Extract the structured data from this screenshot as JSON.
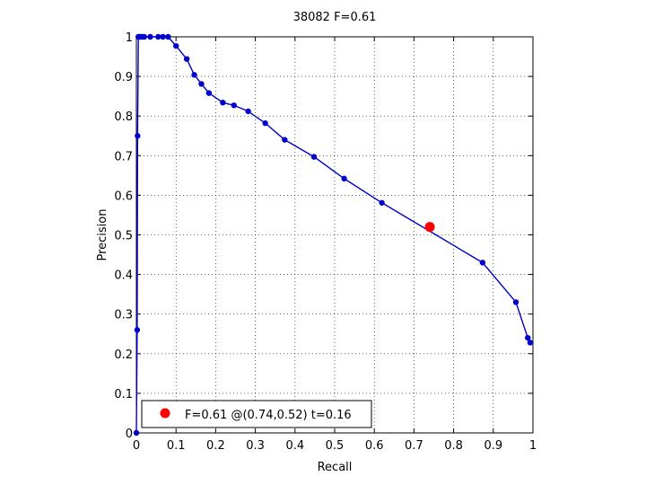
{
  "chart_data": {
    "type": "line",
    "title": "38082 F=0.61",
    "xlabel": "Recall",
    "ylabel": "Precision",
    "xlim": [
      0,
      1
    ],
    "ylim": [
      0,
      1
    ],
    "xticks": [
      0,
      0.1,
      0.2,
      0.3,
      0.4,
      0.5,
      0.6,
      0.7,
      0.8,
      0.9,
      1
    ],
    "yticks": [
      0,
      0.1,
      0.2,
      0.3,
      0.4,
      0.5,
      0.6,
      0.7,
      0.8,
      0.9,
      1
    ],
    "xtick_labels": [
      "0",
      "0.1",
      "0.2",
      "0.3",
      "0.4",
      "0.5",
      "0.6",
      "0.7",
      "0.8",
      "0.9",
      "1"
    ],
    "ytick_labels": [
      "0",
      "0.1",
      "0.2",
      "0.3",
      "0.4",
      "0.5",
      "0.6",
      "0.7",
      "0.8",
      "0.9",
      "1"
    ],
    "grid": true,
    "legend_position": "bottom-left",
    "series": [
      {
        "color": "#0000cc",
        "x": [
          0,
          0.002,
          0.003,
          0.005,
          0.007,
          0.01,
          0.015,
          0.02,
          0.035,
          0.055,
          0.067,
          0.08,
          0.1,
          0.127,
          0.146,
          0.164,
          0.183,
          0.218,
          0.246,
          0.282,
          0.325,
          0.374,
          0.448,
          0.524,
          0.619,
          0.873,
          0.957,
          0.987,
          0.993
        ],
        "y": [
          0,
          0.26,
          0.75,
          1.0,
          1.0,
          1.0,
          1.0,
          1.0,
          1.0,
          1.0,
          1.0,
          1.0,
          0.977,
          0.944,
          0.904,
          0.881,
          0.858,
          0.834,
          0.827,
          0.812,
          0.782,
          0.74,
          0.697,
          0.642,
          0.581,
          0.43,
          0.33,
          0.24,
          0.228
        ]
      }
    ],
    "highlight_point": {
      "x": 0.74,
      "y": 0.52,
      "color": "#ff0000"
    },
    "legend": {
      "entry": "F=0.61 @(0.74,0.52) t=0.16",
      "marker_color": "#ff0000"
    }
  }
}
